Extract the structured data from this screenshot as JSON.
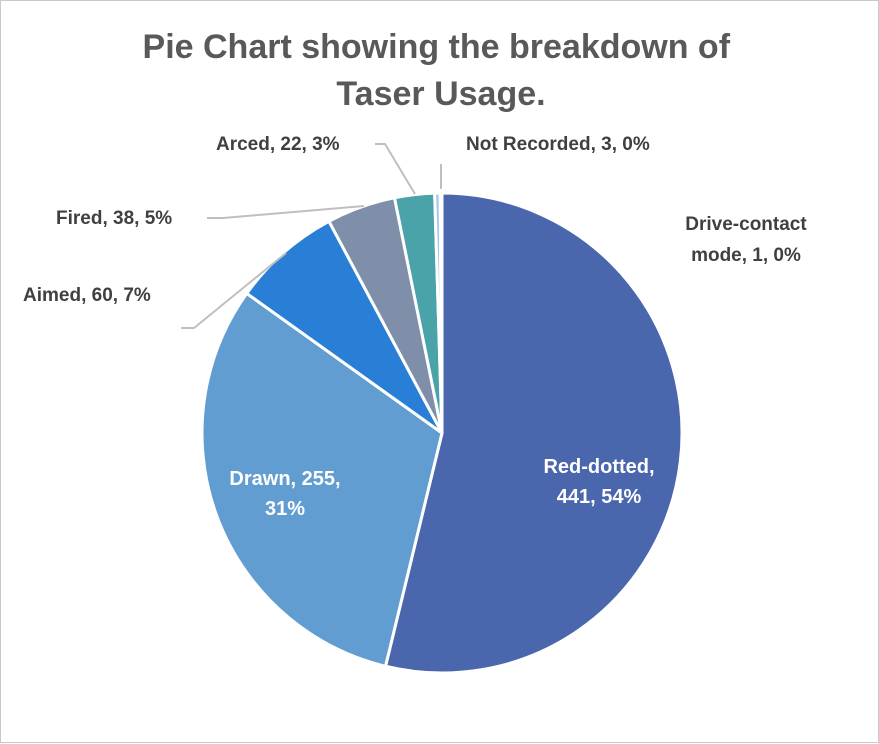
{
  "chart_data": {
    "type": "pie",
    "title_lines": [
      "Pie Chart showing the breakdown of",
      "Taser Usage."
    ],
    "slices": [
      {
        "name": "Red-dotted",
        "value": 441,
        "pct": "54%",
        "label_lines": [
          "Red-dotted,",
          "441, 54%"
        ],
        "color": "#4A66AC"
      },
      {
        "name": "Drawn",
        "value": 255,
        "pct": "31%",
        "label_lines": [
          "Drawn, 255,",
          "31%"
        ],
        "color": "#629DD1"
      },
      {
        "name": "Aimed",
        "value": 60,
        "pct": "7%",
        "label_lines": [
          "Aimed, 60, 7%"
        ],
        "color": "#297FD5"
      },
      {
        "name": "Fired",
        "value": 38,
        "pct": "5%",
        "label_lines": [
          "Fired, 38, 5%"
        ],
        "color": "#7F8FA9"
      },
      {
        "name": "Arced",
        "value": 22,
        "pct": "3%",
        "label_lines": [
          "Arced, 22, 3%"
        ],
        "color": "#4AA3A8"
      },
      {
        "name": "Not Recorded",
        "value": 3,
        "pct": "0%",
        "label_lines": [
          "Not Recorded, 3, 0%"
        ],
        "color": "#A5C7E6"
      },
      {
        "name": "Drive-contact mode",
        "value": 1,
        "pct": "0%",
        "label_lines": [
          "Drive-contact",
          "mode, 1, 0%"
        ],
        "color": "#3A4F85"
      }
    ],
    "legend": false
  }
}
